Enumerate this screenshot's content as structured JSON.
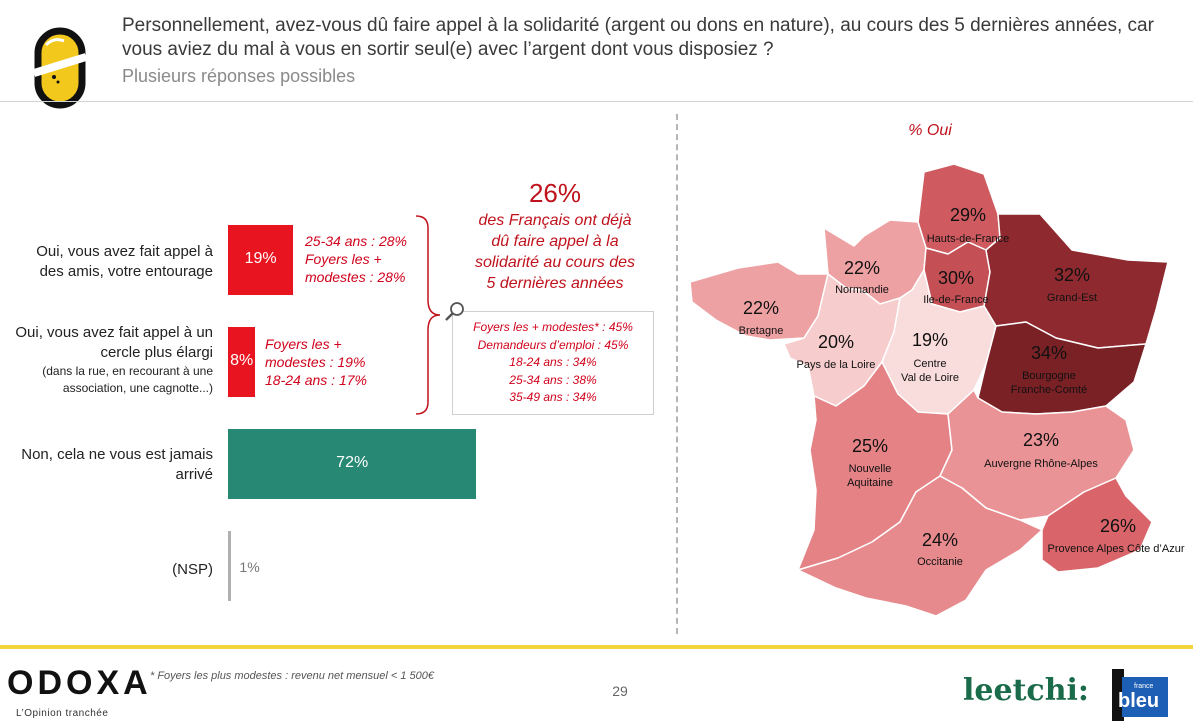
{
  "header": {
    "question": "Personnellement, avez-vous dû faire appel à la solidarité (argent ou dons en nature), au cours des 5 dernières années, car vous aviez du mal à vous en sortir seul(e) avec l’argent dont vous disposiez ?",
    "subtitle": "Plusieurs réponses possibles"
  },
  "chart_data": [
    {
      "type": "bar",
      "orientation": "horizontal",
      "categories": [
        "Oui, vous avez fait appel à des amis, votre entourage",
        "Oui, vous avez fait appel à un cercle plus élargi",
        "Non, cela ne vous est jamais arrivé",
        "(NSP)"
      ],
      "category_notes": [
        "",
        "(dans la rue, en recourant à une association, une cagnotte...)",
        "",
        ""
      ],
      "values": [
        19,
        8,
        72,
        1
      ],
      "value_labels": [
        "19%",
        "8%",
        "72%",
        "1%"
      ],
      "colors": [
        "#e8141f",
        "#e8141f",
        "#278873",
        "#b0b0b0"
      ],
      "xlim": [
        0,
        100
      ],
      "bar_details": [
        [
          "25-34 ans : 28%",
          "Foyers les +",
          "modestes : 28%"
        ],
        [
          "Foyers les +",
          "modestes : 19%",
          "18-24 ans : 17%"
        ],
        [],
        []
      ],
      "callout": {
        "value": "26%",
        "text": [
          "des Français ont déjà",
          "dû faire appel à la",
          "solidarité au cours des",
          "5 dernières années"
        ],
        "details": [
          "Foyers les + modestes* : 45%",
          "Demandeurs d’emploi : 45%",
          "18-24 ans : 34%",
          "25-34 ans : 38%",
          "35-49 ans : 34%"
        ]
      }
    },
    {
      "type": "map",
      "title": "% Oui",
      "regions": [
        {
          "name": "Hauts-de-France",
          "value": 29,
          "label": "29%",
          "color": "#cf5b60"
        },
        {
          "name": "Normandie",
          "value": 22,
          "label": "22%",
          "color": "#eea1a3"
        },
        {
          "name": "Ile-de-France",
          "value": 30,
          "label": "30%",
          "color": "#c45056"
        },
        {
          "name": "Grand-Est",
          "value": 32,
          "label": "32%",
          "color": "#8e2a2f"
        },
        {
          "name": "Bretagne",
          "value": 22,
          "label": "22%",
          "color": "#eea1a3"
        },
        {
          "name": "Pays de la Loire",
          "value": 20,
          "label": "20%",
          "color": "#f6cccd"
        },
        {
          "name": "Centre Val de Loire",
          "value": 19,
          "label": "19%",
          "color": "#f9dcdc"
        },
        {
          "name": "Bourgogne Franche-Comté",
          "value": 34,
          "label": "34%",
          "color": "#7a2126"
        },
        {
          "name": "Nouvelle Aquitaine",
          "value": 25,
          "label": "25%",
          "color": "#e48286"
        },
        {
          "name": "Auvergne Rhône-Alpes",
          "value": 23,
          "label": "23%",
          "color": "#ea9396"
        },
        {
          "name": "Occitanie",
          "value": 24,
          "label": "24%",
          "color": "#e78a8d"
        },
        {
          "name": "Provence Alpes Côte d’Azur",
          "value": 26,
          "label": "26%",
          "color": "#d9656a"
        }
      ]
    }
  ],
  "footer": {
    "brand": "ODOXA",
    "tagline": "L’Opinion tranchée",
    "footnote": "* Foyers les plus modestes : revenu net mensuel < 1 500€",
    "page": "29",
    "partner1": "leetchi:",
    "partner2_small": "france",
    "partner2": "bleu"
  }
}
